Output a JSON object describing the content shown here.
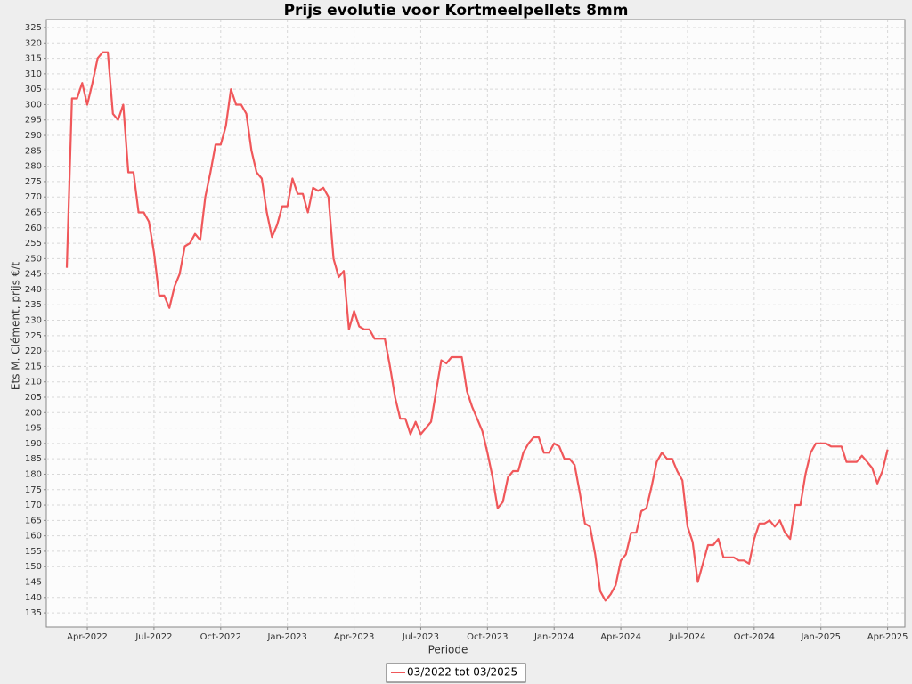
{
  "chart_data": {
    "type": "line",
    "title": "Prijs evolutie voor Kortmeelpellets 8mm",
    "x_label": "Periode",
    "y_label": "Ets M. Clément, prijs €/t",
    "categories": [
      null,
      null,
      null,
      null,
      "Apr-2022",
      null,
      null,
      null,
      null,
      null,
      null,
      null,
      null,
      null,
      null,
      null,
      null,
      "Jul-2022",
      null,
      null,
      null,
      null,
      null,
      null,
      null,
      null,
      null,
      null,
      null,
      null,
      "Oct-2022",
      null,
      null,
      null,
      null,
      null,
      null,
      null,
      null,
      null,
      null,
      null,
      null,
      "Jan-2023",
      null,
      null,
      null,
      null,
      null,
      null,
      null,
      null,
      null,
      null,
      null,
      null,
      "Apr-2023",
      null,
      null,
      null,
      null,
      null,
      null,
      null,
      null,
      null,
      null,
      null,
      null,
      "Jul-2023",
      null,
      null,
      null,
      null,
      null,
      null,
      null,
      null,
      null,
      null,
      null,
      null,
      "Oct-2023",
      null,
      null,
      null,
      null,
      null,
      null,
      null,
      null,
      null,
      null,
      null,
      null,
      "Jan-2024",
      null,
      null,
      null,
      null,
      null,
      null,
      null,
      null,
      null,
      null,
      null,
      null,
      "Apr-2024",
      null,
      null,
      null,
      null,
      null,
      null,
      null,
      null,
      null,
      null,
      null,
      null,
      "Jul-2024",
      null,
      null,
      null,
      null,
      null,
      null,
      null,
      null,
      null,
      null,
      null,
      null,
      "Oct-2024",
      null,
      null,
      null,
      null,
      null,
      null,
      null,
      null,
      null,
      null,
      null,
      null,
      "Jan-2025",
      null,
      null,
      null,
      null,
      null,
      null,
      null,
      null,
      null,
      null,
      null,
      null,
      "Apr-2025"
    ],
    "series": [
      {
        "name": "03/2022 tot 03/2025",
        "color": "#f0575a",
        "values": [
          247,
          302,
          302,
          307,
          300,
          307,
          315,
          317,
          317,
          297,
          295,
          300,
          278,
          278,
          265,
          265,
          262,
          252,
          238,
          238,
          234,
          241,
          245,
          254,
          255,
          258,
          256,
          270,
          278,
          287,
          287,
          293,
          305,
          300,
          300,
          297,
          285,
          278,
          276,
          265,
          257,
          261,
          267,
          267,
          276,
          271,
          271,
          265,
          273,
          272,
          273,
          270,
          250,
          244,
          246,
          227,
          233,
          228,
          227,
          227,
          224,
          224,
          224,
          215,
          205,
          198,
          198,
          193,
          197,
          193,
          195,
          197,
          207,
          217,
          216,
          218,
          218,
          218,
          207,
          202,
          198,
          194,
          187,
          179,
          169,
          171,
          179,
          181,
          181,
          187,
          190,
          192,
          192,
          187,
          187,
          190,
          189,
          185,
          185,
          183,
          174,
          164,
          163,
          154,
          142,
          139,
          141,
          144,
          152,
          154,
          161,
          161,
          168,
          169,
          176,
          184,
          187,
          185,
          185,
          181,
          178,
          163,
          158,
          145,
          151,
          157,
          157,
          159,
          153,
          153,
          153,
          152,
          152,
          151,
          159,
          164,
          164,
          165,
          163,
          165,
          161,
          159,
          170,
          170,
          180,
          187,
          190,
          190,
          190,
          189,
          189,
          189,
          184,
          184,
          184,
          186,
          184,
          182,
          177,
          181,
          188
        ]
      }
    ],
    "ylim": [
      130.4,
      327.6
    ],
    "yticks": [
      135,
      140,
      145,
      150,
      155,
      160,
      165,
      170,
      175,
      180,
      185,
      190,
      195,
      200,
      205,
      210,
      215,
      220,
      225,
      230,
      235,
      240,
      245,
      250,
      255,
      260,
      265,
      270,
      275,
      280,
      285,
      290,
      295,
      300,
      305,
      310,
      315,
      320,
      325
    ],
    "grid": true,
    "legend": "bottom"
  }
}
